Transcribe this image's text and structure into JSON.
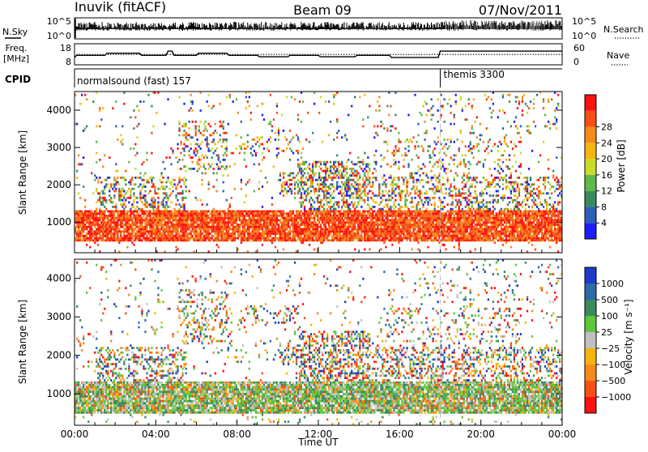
{
  "header": {
    "station": "Inuvik (fitACF)",
    "beam": "Beam 09",
    "date": "07/Nov/2011"
  },
  "nsky_panel": {
    "left_label": "N.Sky",
    "right_label": "N.Search",
    "left_ticks": [
      "10^5",
      "10^0"
    ],
    "right_ticks": [
      "10^5",
      "10^0"
    ]
  },
  "freq_panel": {
    "left_label_1": "Freq.",
    "left_label_2": "[MHz]",
    "right_label": "Nave",
    "left_ticks": [
      "18",
      "8"
    ],
    "right_ticks": [
      "60",
      "0"
    ]
  },
  "cpid_panel": {
    "label": "CPID",
    "mode_1": "normalsound (fast) 157",
    "mode_2": "themis 3300"
  },
  "chart_data": [
    {
      "type": "heatmap",
      "name": "power",
      "xlabel": "",
      "ylabel": "Slant Range [km]",
      "xlim": [
        0,
        24
      ],
      "ylim": [
        180,
        4500
      ],
      "yticks": [
        "1000",
        "2000",
        "3000",
        "4000"
      ],
      "yvals": [
        1000,
        2000,
        3000,
        4000
      ],
      "colorbar": {
        "label": "Power [dB]",
        "ticks": [
          "4",
          "8",
          "12",
          "16",
          "20",
          "24",
          "28"
        ],
        "colors": [
          "#1c1cff",
          "#2e5fb8",
          "#3a8a5e",
          "#5fb84a",
          "#c8dc2a",
          "#f5b410",
          "#f58a1a",
          "#f55018",
          "#ff1010"
        ]
      }
    },
    {
      "type": "heatmap",
      "name": "velocity",
      "xlabel": "Time UT",
      "ylabel": "Slant Range [km]",
      "xlim": [
        0,
        24
      ],
      "ylim": [
        180,
        4500
      ],
      "xticks": [
        "00:00",
        "04:00",
        "08:00",
        "12:00",
        "16:00",
        "20:00",
        "00:00"
      ],
      "xvals": [
        0,
        4,
        8,
        12,
        16,
        20,
        24
      ],
      "yticks": [
        "1000",
        "2000",
        "3000",
        "4000"
      ],
      "yvals": [
        1000,
        2000,
        3000,
        4000
      ],
      "colorbar": {
        "label": "Velocity [m s⁻¹]",
        "ticks": [
          "1000",
          "500",
          "100",
          "25",
          "−25",
          "−100",
          "−500",
          "−1000"
        ],
        "colors": [
          "#1c3cc8",
          "#2e6aa8",
          "#3a8a5e",
          "#5cc83a",
          "#c0c0c0",
          "#f5b410",
          "#f58a1a",
          "#f55018",
          "#ff1010"
        ]
      }
    }
  ],
  "mode_change_ut": 18.0,
  "freq_trace_mhz": [
    [
      0,
      11.5
    ],
    [
      0.1,
      12.5
    ],
    [
      1.5,
      12.5
    ],
    [
      1.6,
      13.5
    ],
    [
      3.2,
      13.5
    ],
    [
      3.3,
      12.5
    ],
    [
      4.5,
      12.5
    ],
    [
      4.6,
      14.5
    ],
    [
      4.8,
      14.5
    ],
    [
      4.9,
      12.5
    ],
    [
      6,
      12.5
    ],
    [
      6.1,
      13.5
    ],
    [
      7.5,
      13.5
    ],
    [
      7.6,
      12.5
    ],
    [
      9,
      12.5
    ],
    [
      9.1,
      11.8
    ],
    [
      10.5,
      11.8
    ],
    [
      10.6,
      12.5
    ],
    [
      12,
      12.5
    ],
    [
      12.1,
      11.8
    ],
    [
      13.8,
      11.8
    ],
    [
      13.9,
      12.5
    ],
    [
      15.5,
      12.5
    ],
    [
      15.6,
      11.5
    ],
    [
      17.9,
      11.5
    ],
    [
      18.0,
      14.5
    ],
    [
      24,
      14.5
    ]
  ]
}
